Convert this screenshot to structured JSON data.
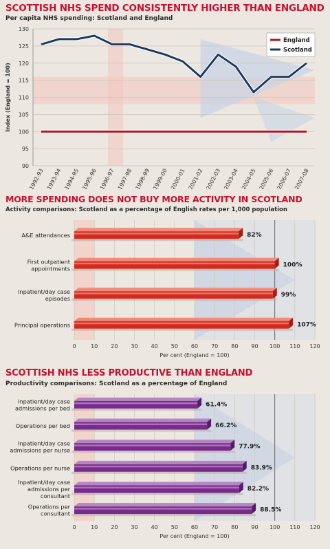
{
  "chart_data": [
    {
      "type": "line",
      "title": "SCOTTISH NHS SPEND CONSISTENTLY HIGHER THAN ENGLAND",
      "subtitle": "Per capita NHS spending: Scotland and England",
      "ylabel": "Index (England = 100)",
      "ylim": [
        90,
        130
      ],
      "yticks": [
        90,
        95,
        100,
        105,
        110,
        115,
        120,
        125,
        130
      ],
      "categories": [
        "1992-93",
        "1993-94",
        "1994-95",
        "1995-96",
        "1996-97",
        "1997-98",
        "1998-99",
        "1999-00",
        "2000-01",
        "2001-02",
        "2002-03",
        "2003-04",
        "2004-05",
        "2005-06",
        "2006-07",
        "2007-08"
      ],
      "series": [
        {
          "name": "England",
          "color": "#b1121f",
          "values": [
            100,
            100,
            100,
            100,
            100,
            100,
            100,
            100,
            100,
            100,
            100,
            100,
            100,
            100,
            100,
            100
          ]
        },
        {
          "name": "Scotland",
          "color": "#1c3a5e",
          "values": [
            125.5,
            127,
            127,
            128,
            125.5,
            125.5,
            124,
            122.5,
            120.5,
            116,
            122.5,
            119,
            111.5,
            116,
            116,
            120
          ]
        }
      ],
      "legend": "top-right"
    },
    {
      "type": "bar",
      "orientation": "horizontal",
      "title": "MORE SPENDING DOES NOT BUY MORE ACTIVITY IN SCOTLAND",
      "subtitle": "Activity comparisons: Scotland as a percentage of English rates per 1,000 population",
      "xlabel": "Per cent (England = 100)",
      "xlim": [
        0,
        120
      ],
      "xticks": [
        0,
        10,
        20,
        30,
        40,
        50,
        60,
        70,
        80,
        90,
        100,
        110,
        120
      ],
      "categories": [
        "A&E attendances",
        "First outpatient appointments",
        "Inpatient/day case episodes",
        "Principal operations"
      ],
      "values": [
        82,
        100,
        99,
        107
      ],
      "value_labels": [
        "82%",
        "100%",
        "99%",
        "107%"
      ],
      "color": "#d42a1e"
    },
    {
      "type": "bar",
      "orientation": "horizontal",
      "title": "SCOTTISH NHS LESS PRODUCTIVE THAN ENGLAND",
      "subtitle": "Productivity comparisons: Scotland as a percentage of England",
      "xlabel": "Per cent (England = 100)",
      "xlim": [
        0,
        120
      ],
      "xticks": [
        0,
        10,
        20,
        30,
        40,
        50,
        60,
        70,
        80,
        90,
        100,
        110,
        120
      ],
      "categories": [
        "Inpatient/day case admissions per bed",
        "Operations per bed",
        "Inpatient/day case admissions per nurse",
        "Operations per nurse",
        "Inpatient/day case admissions per consultant",
        "Operations per consultant"
      ],
      "values": [
        61.4,
        66.2,
        77.9,
        83.9,
        82.2,
        88.5
      ],
      "value_labels": [
        "61.4%",
        "66.2%",
        "77.9%",
        "83.9%",
        "82.2%",
        "88.5%"
      ],
      "color": "#7a2a8c"
    }
  ]
}
